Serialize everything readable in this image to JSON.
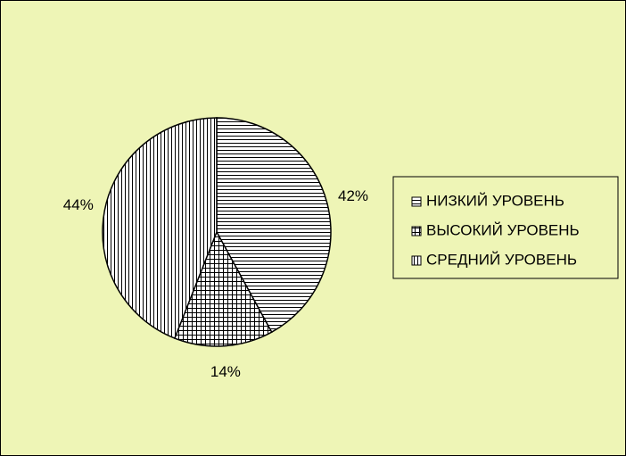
{
  "chart_data": {
    "type": "pie",
    "categories": [
      "НИЗКИЙ УРОВЕНЬ",
      "ВЫСОКИЙ УРОВЕНЬ",
      "СРЕДНИЙ УРОВЕНЬ"
    ],
    "values": [
      42,
      14,
      44
    ],
    "value_labels": [
      "42%",
      "14%",
      "44%"
    ],
    "legend": "right"
  }
}
